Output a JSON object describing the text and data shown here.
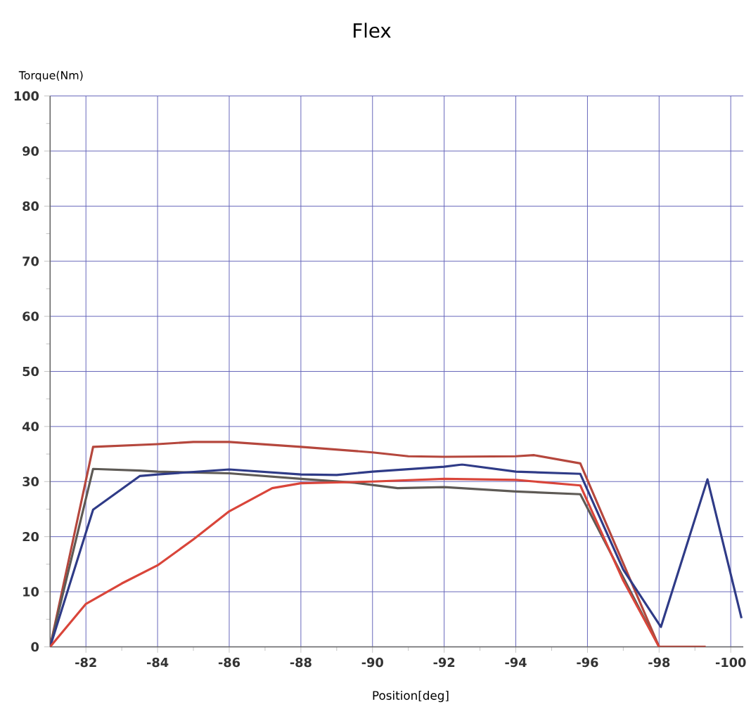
{
  "chart_data": {
    "type": "line",
    "title": "Flex",
    "xlabel": "Position[deg]",
    "ylabel": "Torque(Nm)",
    "xlim": [
      -81,
      -100.35
    ],
    "ylim": [
      0,
      100
    ],
    "xticks": [
      -82,
      -84,
      -86,
      -88,
      -90,
      -92,
      -94,
      -96,
      -98,
      -100
    ],
    "yticks": [
      0,
      10,
      20,
      30,
      40,
      50,
      60,
      70,
      80,
      90,
      100
    ],
    "grid": true,
    "line_style": "solid",
    "series": [
      {
        "color": "#b5473d",
        "x": [
          -81,
          -82.2,
          -84,
          -85,
          -86,
          -88,
          -90,
          -91,
          -92,
          -94,
          -94.5,
          -95.8,
          -98,
          -99.3
        ],
        "values": [
          0,
          36.3,
          36.8,
          37.2,
          37.2,
          36.3,
          35.3,
          34.6,
          34.5,
          34.6,
          34.8,
          33.3,
          0,
          0
        ]
      },
      {
        "color": "#5e5a55",
        "x": [
          -81,
          -82.2,
          -83.5,
          -84,
          -86,
          -88,
          -89.5,
          -90.7,
          -92,
          -94,
          -95.8,
          -98
        ],
        "values": [
          0,
          32.3,
          32,
          31.8,
          31.5,
          30.5,
          29.8,
          28.8,
          29,
          28.2,
          27.7,
          0
        ]
      },
      {
        "color": "#2f3b87",
        "x": [
          -81,
          -82.2,
          -83.5,
          -84,
          -86,
          -88,
          -89,
          -90,
          -92,
          -92.5,
          -94,
          -95.8,
          -97,
          -98.05,
          -99.35,
          -100.3
        ],
        "values": [
          0,
          24.9,
          31,
          31.3,
          32.2,
          31.3,
          31.2,
          31.8,
          32.7,
          33.1,
          31.8,
          31.4,
          14,
          3.6,
          30.4,
          5.2
        ]
      },
      {
        "color": "#d9453a",
        "x": [
          -81,
          -82,
          -83,
          -84,
          -85,
          -86,
          -87.2,
          -88,
          -90,
          -92,
          -94,
          -95.8,
          -97,
          -98
        ],
        "values": [
          0,
          7.8,
          11.5,
          14.8,
          19.5,
          24.6,
          28.8,
          29.7,
          30,
          30.5,
          30.3,
          29.3,
          12,
          0
        ]
      }
    ]
  }
}
